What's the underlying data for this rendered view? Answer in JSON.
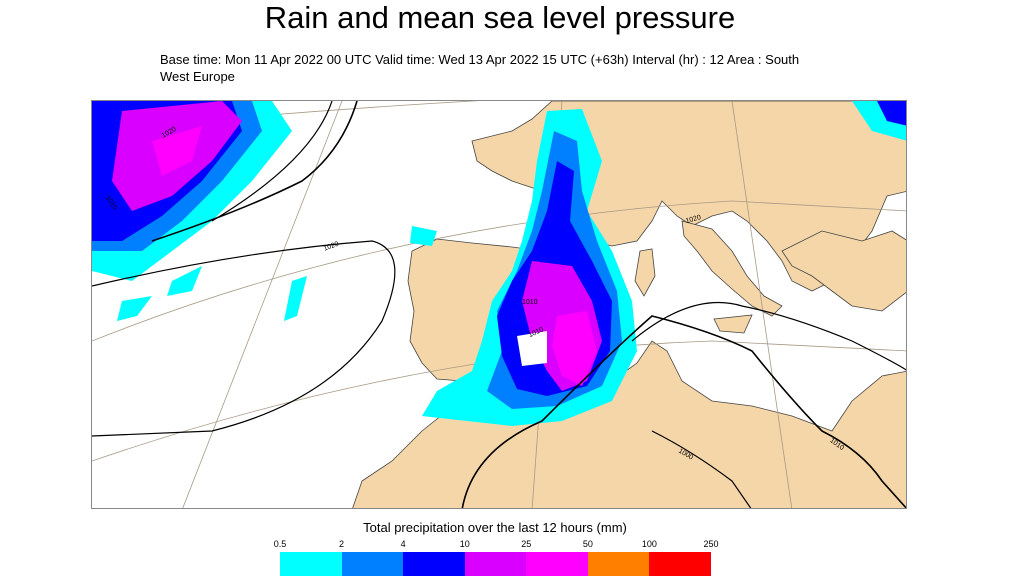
{
  "title": "Rain and mean sea level pressure",
  "subtitle": "Base time: Mon 11 Apr 2022 00 UTC Valid time: Wed 13 Apr 2022 15 UTC (+63h) Interval (hr) : 12 Area : South West Europe",
  "map": {
    "isobar_labels": [
      "1020",
      "1010",
      "1020",
      "1020",
      "1010",
      "1010",
      "1000",
      "1010"
    ],
    "colors": {
      "land": "#f5d6a8",
      "sea": "#ffffff",
      "coast": "#444444",
      "isobar": "#000000"
    }
  },
  "legend": {
    "title": "Total precipitation over the last 12 hours (mm)",
    "ticks": [
      "0.5",
      "2",
      "4",
      "10",
      "25",
      "50",
      "100",
      "250"
    ],
    "colors": [
      "#00ffff",
      "#0080ff",
      "#0000ff",
      "#da00ff",
      "#ff00ff",
      "#ff8000",
      "#ff0000"
    ]
  }
}
